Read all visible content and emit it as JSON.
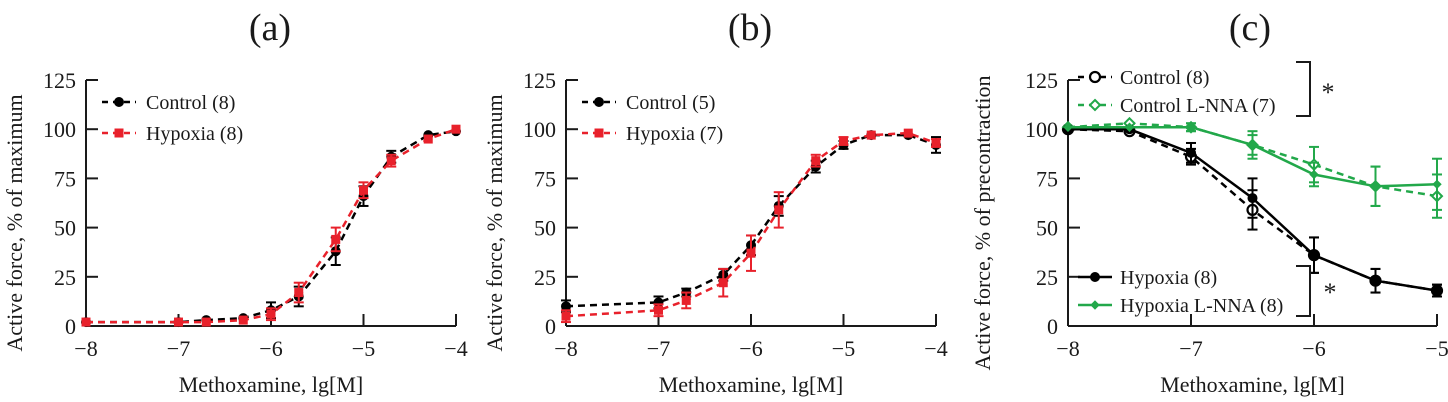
{
  "chart_data": [
    {
      "type": "line",
      "panel_label": "(a)",
      "xlabel": "Methoxamine, lg[M]",
      "ylabel": "Active force, % of maximum",
      "xlim": [
        -8,
        -4
      ],
      "ylim": [
        0,
        125
      ],
      "xticks": [
        -8,
        -7,
        -6,
        -5,
        -4
      ],
      "xtick_labels": [
        "−8",
        "−7",
        "−6",
        "−5",
        "−4"
      ],
      "yticks": [
        0,
        25,
        50,
        75,
        100,
        125
      ],
      "ytick_labels": [
        "0",
        "25",
        "50",
        "75",
        "100",
        "125"
      ],
      "legend_position": "top-left",
      "x": [
        -8,
        -7,
        -6.7,
        -6.3,
        -6,
        -5.7,
        -5.3,
        -5,
        -4.7,
        -4.3,
        -4
      ],
      "series": [
        {
          "name": "Control (8)",
          "color": "#000000",
          "dash": true,
          "marker": "filled-circle",
          "values": [
            2,
            2,
            3,
            4,
            8,
            15,
            38,
            66,
            86,
            97,
            99
          ],
          "errors": [
            1,
            1,
            1,
            1,
            4,
            5,
            7,
            5,
            3,
            1,
            1
          ]
        },
        {
          "name": "Hypoxia (8)",
          "color": "#e8212b",
          "dash": true,
          "marker": "filled-square",
          "values": [
            2,
            2,
            2,
            3,
            6,
            17,
            44,
            69,
            84,
            95,
            100
          ],
          "errors": [
            1,
            1,
            1,
            1,
            3,
            5,
            6,
            4,
            3,
            1,
            1
          ]
        }
      ]
    },
    {
      "type": "line",
      "panel_label": "(b)",
      "xlabel": "Methoxamine, lg[M]",
      "ylabel": "Active force, % of maximum",
      "xlim": [
        -8,
        -4
      ],
      "ylim": [
        0,
        125
      ],
      "xticks": [
        -8,
        -7,
        -6,
        -5,
        -4
      ],
      "xtick_labels": [
        "−8",
        "−7",
        "−6",
        "−5",
        "−4"
      ],
      "yticks": [
        0,
        25,
        50,
        75,
        100,
        125
      ],
      "ytick_labels": [
        "0",
        "25",
        "50",
        "75",
        "100",
        "125"
      ],
      "legend_position": "top-left",
      "x": [
        -8,
        -7,
        -6.7,
        -6.3,
        -6,
        -5.7,
        -5.3,
        -5,
        -4.7,
        -4.3,
        -4
      ],
      "series": [
        {
          "name": "Control (5)",
          "color": "#000000",
          "dash": true,
          "marker": "filled-circle",
          "values": [
            10,
            12,
            17,
            26,
            41,
            61,
            81,
            92,
            97,
            97,
            92
          ],
          "errors": [
            3,
            3,
            2,
            3,
            5,
            5,
            3,
            2,
            1,
            1,
            4
          ]
        },
        {
          "name": "Hypoxia (7)",
          "color": "#e8212b",
          "dash": true,
          "marker": "filled-square",
          "values": [
            5,
            8,
            13,
            22,
            37,
            59,
            84,
            94,
            97,
            98,
            93
          ],
          "errors": [
            3,
            3,
            4,
            7,
            9,
            9,
            3,
            2,
            1,
            1,
            2
          ]
        }
      ]
    },
    {
      "type": "line",
      "panel_label": "(c)",
      "xlabel": "Methoxamine, lg[M]",
      "ylabel": "Active force, % of precontraction",
      "xlim": [
        -8,
        -5
      ],
      "ylim": [
        0,
        125
      ],
      "xticks": [
        -8,
        -7,
        -6,
        -5
      ],
      "xtick_labels": [
        "−8",
        "−7",
        "−6",
        "−5"
      ],
      "yticks": [
        0,
        25,
        50,
        75,
        100,
        125
      ],
      "ytick_labels": [
        "0",
        "25",
        "50",
        "75",
        "100",
        "125"
      ],
      "legend_position": "top-left and bottom-left",
      "x": [
        -8,
        -7.5,
        -7,
        -6.5,
        -6,
        -5.5,
        -5
      ],
      "series": [
        {
          "name": "Control (8)",
          "color": "#000000",
          "dash": true,
          "marker": "open-circle",
          "values": [
            100,
            99,
            86,
            59,
            36,
            23,
            18
          ],
          "errors": [
            1,
            1,
            4,
            10,
            9,
            6,
            3
          ]
        },
        {
          "name": "Control L-NNA (7)",
          "color": "#22a84a",
          "dash": true,
          "marker": "open-diamond",
          "values": [
            101,
            103,
            101,
            92,
            82,
            71,
            66
          ],
          "errors": [
            1,
            1,
            2,
            7,
            9,
            10,
            11
          ]
        },
        {
          "name": "Hypoxia (8)",
          "color": "#000000",
          "dash": false,
          "marker": "filled-circle",
          "values": [
            100,
            100,
            88,
            65,
            36,
            23,
            18
          ],
          "errors": [
            1,
            1,
            5,
            10,
            9,
            6,
            3
          ]
        },
        {
          "name": "Hypoxia L-NNA (8)",
          "color": "#22a84a",
          "dash": false,
          "marker": "filled-diamond",
          "values": [
            101,
            101,
            101,
            92,
            77,
            71,
            72
          ],
          "errors": [
            1,
            1,
            2,
            5,
            6,
            10,
            13
          ]
        }
      ],
      "annotations": [
        {
          "text": "*",
          "groups": [
            "Control (8)",
            "Control L-NNA (7)"
          ]
        },
        {
          "text": "*",
          "groups": [
            "Hypoxia (8)",
            "Hypoxia L-NNA (8)"
          ]
        }
      ]
    }
  ]
}
